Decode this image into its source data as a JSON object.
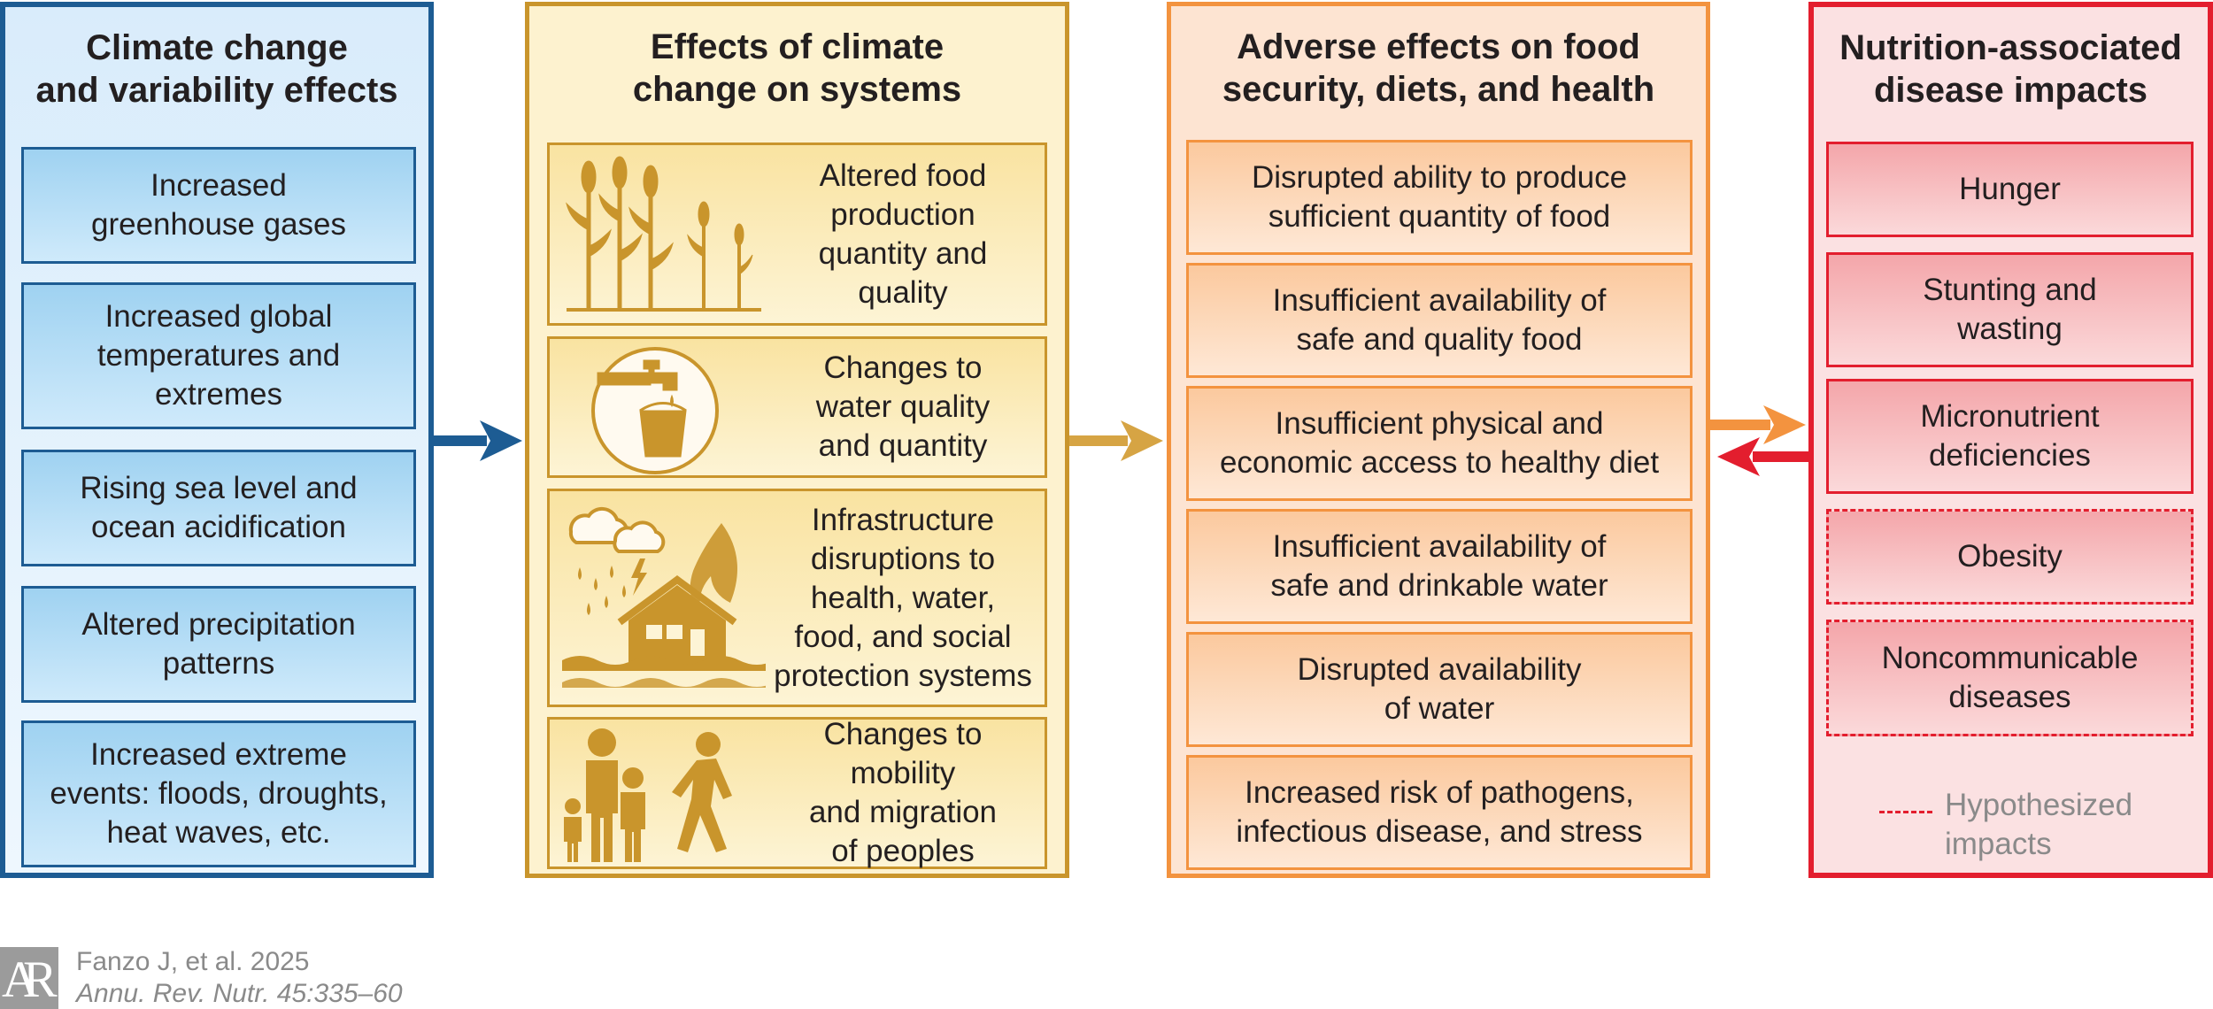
{
  "columns": [
    {
      "title": "Climate change\nand variability effects",
      "items": [
        "Increased\ngreenhouse gases",
        "Increased global\ntemperatures and\nextremes",
        "Rising sea level and\nocean acidification",
        "Altered precipitation\npatterns",
        "Increased extreme\nevents: floods, droughts,\nheat waves, etc."
      ]
    },
    {
      "title": "Effects of climate\nchange on systems",
      "items": [
        {
          "text": "Altered food\nproduction\nquantity and\nquality",
          "icon": "corn-crops-icon"
        },
        {
          "text": "Changes to\nwater quality\nand quantity",
          "icon": "water-faucet-bucket-icon"
        },
        {
          "text": "Infrastructure\ndisruptions to\nhealth, water,\nfood, and social\nprotection systems",
          "icon": "storm-flood-fire-house-icon"
        },
        {
          "text": "Changes to mobility\nand migration\nof peoples",
          "icon": "family-walking-icon"
        }
      ]
    },
    {
      "title": "Adverse effects on food\nsecurity, diets, and health",
      "items": [
        "Disrupted ability to produce\nsufficient quantity of food",
        "Insufficient availability of\nsafe and quality food",
        "Insufficient physical and\neconomic access to healthy diet",
        "Insufficient availability of\nsafe and drinkable water",
        "Disrupted availability\nof water",
        "Increased risk of pathogens,\ninfectious disease, and stress"
      ]
    },
    {
      "title": "Nutrition-associated\ndisease impacts",
      "items": [
        {
          "text": "Hunger",
          "hypothesized": false
        },
        {
          "text": "Stunting and\nwasting",
          "hypothesized": false
        },
        {
          "text": "Micronutrient\ndeficiencies",
          "hypothesized": false
        },
        {
          "text": "Obesity",
          "hypothesized": true
        },
        {
          "text": "Noncommunicable\ndiseases",
          "hypothesized": true
        }
      ],
      "legend": "Hypothesized\nimpacts"
    }
  ],
  "citation": {
    "logo": "AR",
    "line1": "Fanzo J, et al. 2025",
    "line2": "Annu. Rev. Nutr. 45:335–60"
  },
  "colors": {
    "blue": "#1d5c93",
    "gold": "#c9952c",
    "orange": "#f3933f",
    "red": "#e31e2e"
  }
}
